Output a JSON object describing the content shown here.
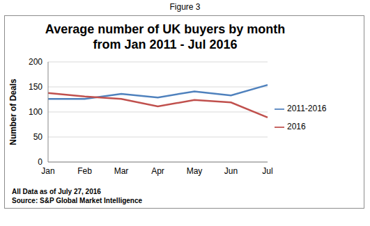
{
  "chart_data": {
    "type": "line",
    "title": "Average number of UK buyers by month\nfrom Jan 2011 - Jul 2016",
    "y_label": "Number of Deals",
    "annotations": [
      "Figure 3",
      "All Data as of July 27, 2016",
      "Source: S&P Global Market Intelligence"
    ],
    "categories": [
      "Jan",
      "Feb",
      "Mar",
      "Apr",
      "May",
      "Jun",
      "Jul"
    ],
    "series": [
      {
        "name": "2011-2016",
        "color": "#4f81bd",
        "values": [
          126,
          126,
          136,
          129,
          141,
          133,
          154
        ]
      },
      {
        "name": "2016",
        "color": "#c0504d",
        "values": [
          138,
          131,
          126,
          111,
          124,
          119,
          89
        ]
      }
    ],
    "ylim": [
      0,
      200
    ],
    "yticks": [
      0,
      50,
      100,
      150,
      200
    ],
    "grid": true,
    "legend": "right",
    "marker": "none"
  }
}
